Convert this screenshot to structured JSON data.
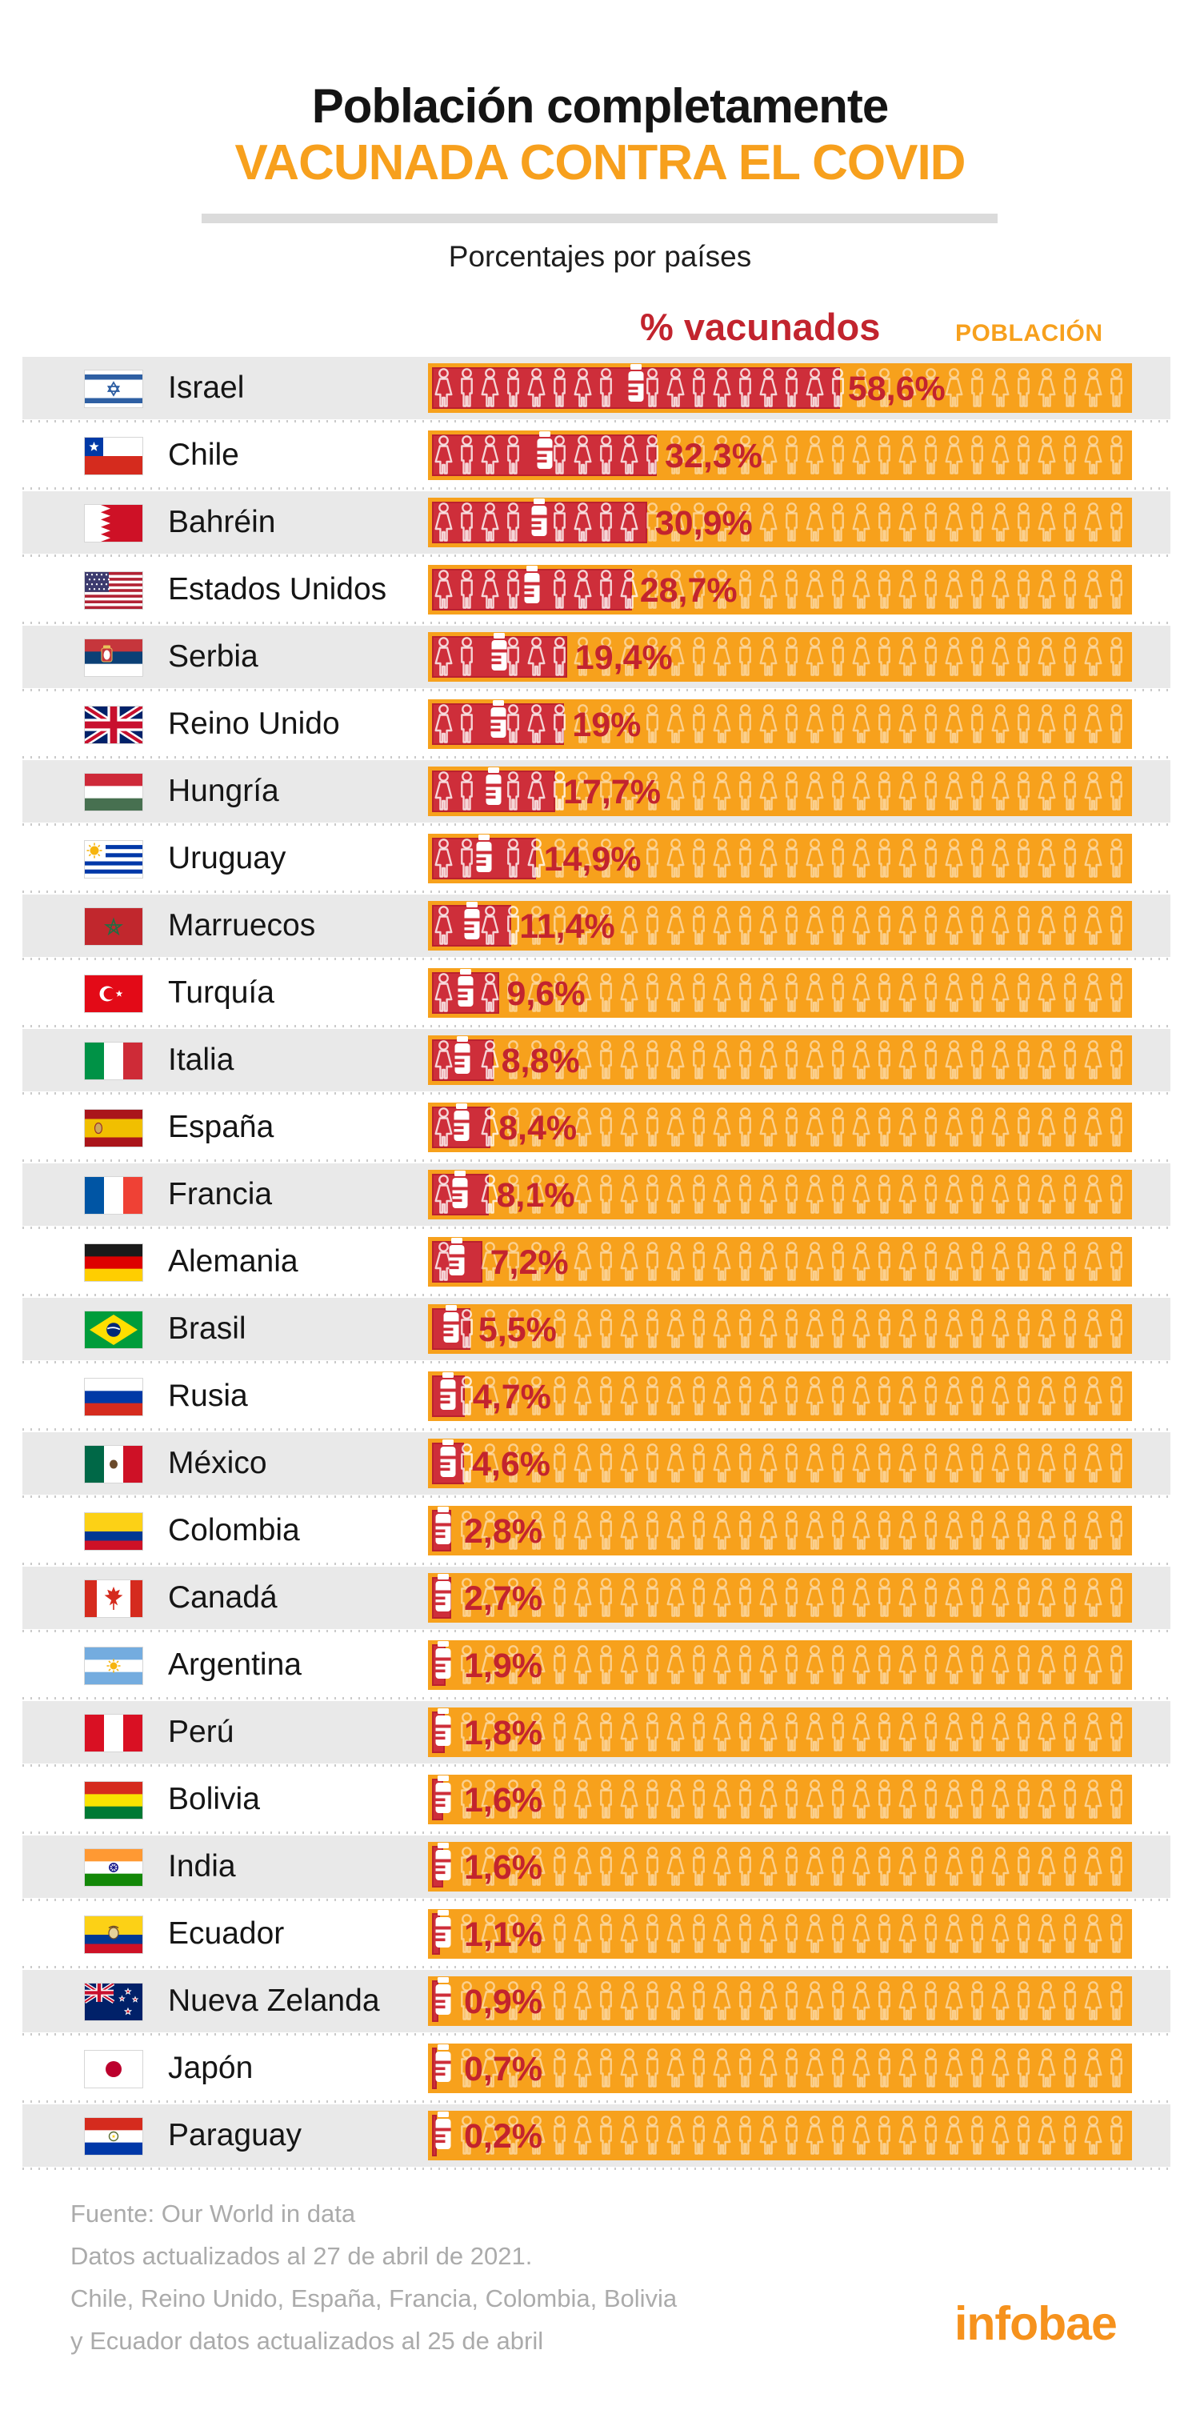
{
  "header": {
    "title_line1": "Población completamente",
    "title_line2": "VACUNADA CONTRA EL COVID",
    "subtitle": "Porcentajes por países"
  },
  "legend": {
    "vaccinated_label": "% vacunados",
    "population_label": "POBLACIÓN"
  },
  "chart_data": {
    "type": "bar",
    "unit": "%",
    "title": "Población completamente vacunada contra el COVID",
    "subtitle": "Porcentajes por países",
    "xlim": [
      0,
      100
    ],
    "categories": [
      "Israel",
      "Chile",
      "Bahréin",
      "Estados Unidos",
      "Serbia",
      "Reino Unido",
      "Hungría",
      "Uruguay",
      "Marruecos",
      "Turquía",
      "Italia",
      "España",
      "Francia",
      "Alemania",
      "Brasil",
      "Rusia",
      "México",
      "Colombia",
      "Canadá",
      "Argentina",
      "Perú",
      "Bolivia",
      "India",
      "Ecuador",
      "Nueva Zelanda",
      "Japón",
      "Paraguay"
    ],
    "values": [
      58.6,
      32.3,
      30.9,
      28.7,
      19.4,
      19,
      17.7,
      14.9,
      11.4,
      9.6,
      8.8,
      8.4,
      8.1,
      7.2,
      5.5,
      4.7,
      4.6,
      2.8,
      2.7,
      1.9,
      1.8,
      1.6,
      1.6,
      1.1,
      0.9,
      0.7,
      0.2
    ],
    "labels": [
      "58,6%",
      "32,3%",
      "30,9%",
      "28,7%",
      "19,4%",
      "19%",
      "17,7%",
      "14,9%",
      "11,4%",
      "9,6%",
      "8,8%",
      "8,4%",
      "8,1%",
      "7,2%",
      "5,5%",
      "4,7%",
      "4,6%",
      "2,8%",
      "2,7%",
      "1,9%",
      "1,8%",
      "1,6%",
      "1,6%",
      "1,1%",
      "0,9%",
      "0,7%",
      "0,2%"
    ],
    "flags": [
      "israel",
      "chile",
      "bahrain",
      "usa",
      "serbia",
      "uk",
      "hungary",
      "uruguay",
      "morocco",
      "turkey",
      "italy",
      "spain",
      "france",
      "germany",
      "brazil",
      "russia",
      "mexico",
      "colombia",
      "canada",
      "argentina",
      "peru",
      "bolivia",
      "india",
      "ecuador",
      "nz",
      "japan",
      "paraguay"
    ],
    "legend": [
      "% vacunados",
      "POBLACIÓN"
    ]
  },
  "icons": {
    "vial": "vaccine-vial-icon",
    "person_female": "female-person-icon",
    "person_male": "male-person-icon"
  },
  "colors": {
    "orange": "#F7A11C",
    "red": "#CE2E3A",
    "percent_red": "#C2242E",
    "title_orange": "#F7A01D",
    "row_gray": "#E9E9E9",
    "footer_gray": "#ABABAB",
    "brand_orange": "#F6921D"
  },
  "footer": {
    "lines": [
      "Fuente: Our World in data",
      "Datos actualizados al 27 de abril de 2021.",
      "Chile, Reino Unido, España, Francia, Colombia, Bolivia",
      "y Ecuador datos actualizados al 25 de abril"
    ]
  },
  "brand": {
    "name": "infobae"
  }
}
